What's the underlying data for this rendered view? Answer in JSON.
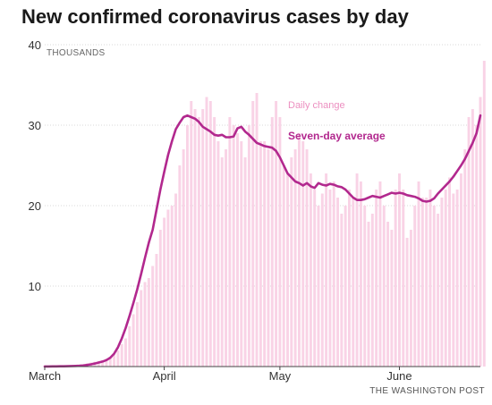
{
  "header": {
    "title": "New confirmed coronavirus cases by day",
    "credit": "THE WASHINGTON POST"
  },
  "colors": {
    "bars": "#f9d3e6",
    "line": "#b2288e",
    "daily_annotation": "#ec8fc0",
    "gridline": "#d9d9d9",
    "axis": "#444444"
  },
  "chart_data": {
    "type": "bar",
    "title": "New confirmed coronavirus cases by day",
    "ylabel": "THOUSANDS",
    "ylim": [
      0,
      40
    ],
    "yticks": [
      10,
      20,
      30,
      40
    ],
    "x_tick_labels": [
      "March",
      "April",
      "May",
      "June"
    ],
    "x_tick_days": [
      1,
      32,
      62,
      93
    ],
    "x_range_days": [
      1,
      114
    ],
    "grid": "horizontal",
    "annotations": {
      "daily": "Daily change",
      "average": "Seven-day average"
    },
    "series": [
      {
        "name": "Daily change",
        "type": "bar",
        "x_start_day": 1,
        "values": [
          0.01,
          0.02,
          0.03,
          0.05,
          0.05,
          0.06,
          0.08,
          0.1,
          0.15,
          0.2,
          0.3,
          0.4,
          0.5,
          0.6,
          0.7,
          0.8,
          1.0,
          1.2,
          1.5,
          2.0,
          2.8,
          3.5,
          5.0,
          6.5,
          8.0,
          9.5,
          10.5,
          11.0,
          12.5,
          14.0,
          17.0,
          18.5,
          19.5,
          20.0,
          21.5,
          25.0,
          27.0,
          30.0,
          33.0,
          32.0,
          31.0,
          32.0,
          33.5,
          33.0,
          31.0,
          28.0,
          26.0,
          27.0,
          31.0,
          30.0,
          29.0,
          28.0,
          26.0,
          30.0,
          33.0,
          34.0,
          28.0,
          28.0,
          27.0,
          31.0,
          33.0,
          31.0,
          25.0,
          24.0,
          26.0,
          27.0,
          29.0,
          28.0,
          27.0,
          24.0,
          22.0,
          20.0,
          21.5,
          24.0,
          22.0,
          23.0,
          21.0,
          19.0,
          20.0,
          22.0,
          21.0,
          24.0,
          23.0,
          20.0,
          18.0,
          19.0,
          22.0,
          23.0,
          20.0,
          18.0,
          17.0,
          22.0,
          24.0,
          22.0,
          16.0,
          17.0,
          20.0,
          23.0,
          21.0,
          21.0,
          22.0,
          20.0,
          19.0,
          21.0,
          22.0,
          23.5,
          21.5,
          22.0,
          24.0,
          27.0,
          31.0,
          32.0,
          30.0,
          33.5,
          38.0
        ]
      },
      {
        "name": "Seven-day average",
        "type": "line",
        "x_start_day": 1,
        "values": [
          0.01,
          0.01,
          0.02,
          0.02,
          0.03,
          0.04,
          0.05,
          0.06,
          0.08,
          0.1,
          0.14,
          0.2,
          0.28,
          0.38,
          0.5,
          0.62,
          0.8,
          1.1,
          1.6,
          2.4,
          3.5,
          4.8,
          6.3,
          7.9,
          9.6,
          11.5,
          13.5,
          15.4,
          17.0,
          19.5,
          22.0,
          24.2,
          26.3,
          28.0,
          29.5,
          30.3,
          31.0,
          31.2,
          31.0,
          30.8,
          30.4,
          29.8,
          29.5,
          29.2,
          28.8,
          28.7,
          28.8,
          28.5,
          28.5,
          28.6,
          29.6,
          29.8,
          29.2,
          28.8,
          28.3,
          27.8,
          27.6,
          27.4,
          27.3,
          27.2,
          26.8,
          26.0,
          25.0,
          24.0,
          23.5,
          23.0,
          22.8,
          22.5,
          22.8,
          22.4,
          22.2,
          22.8,
          22.6,
          22.5,
          22.7,
          22.6,
          22.4,
          22.3,
          22.0,
          21.5,
          21.0,
          20.7,
          20.7,
          20.8,
          21.0,
          21.2,
          21.1,
          21.0,
          21.2,
          21.4,
          21.6,
          21.5,
          21.6,
          21.5,
          21.3,
          21.2,
          21.1,
          20.9,
          20.6,
          20.5,
          20.6,
          20.9,
          21.5,
          22.0,
          22.5,
          23.0,
          23.6,
          24.3,
          25.0,
          25.8,
          26.8,
          27.8,
          29.0,
          31.2
        ]
      }
    ]
  }
}
